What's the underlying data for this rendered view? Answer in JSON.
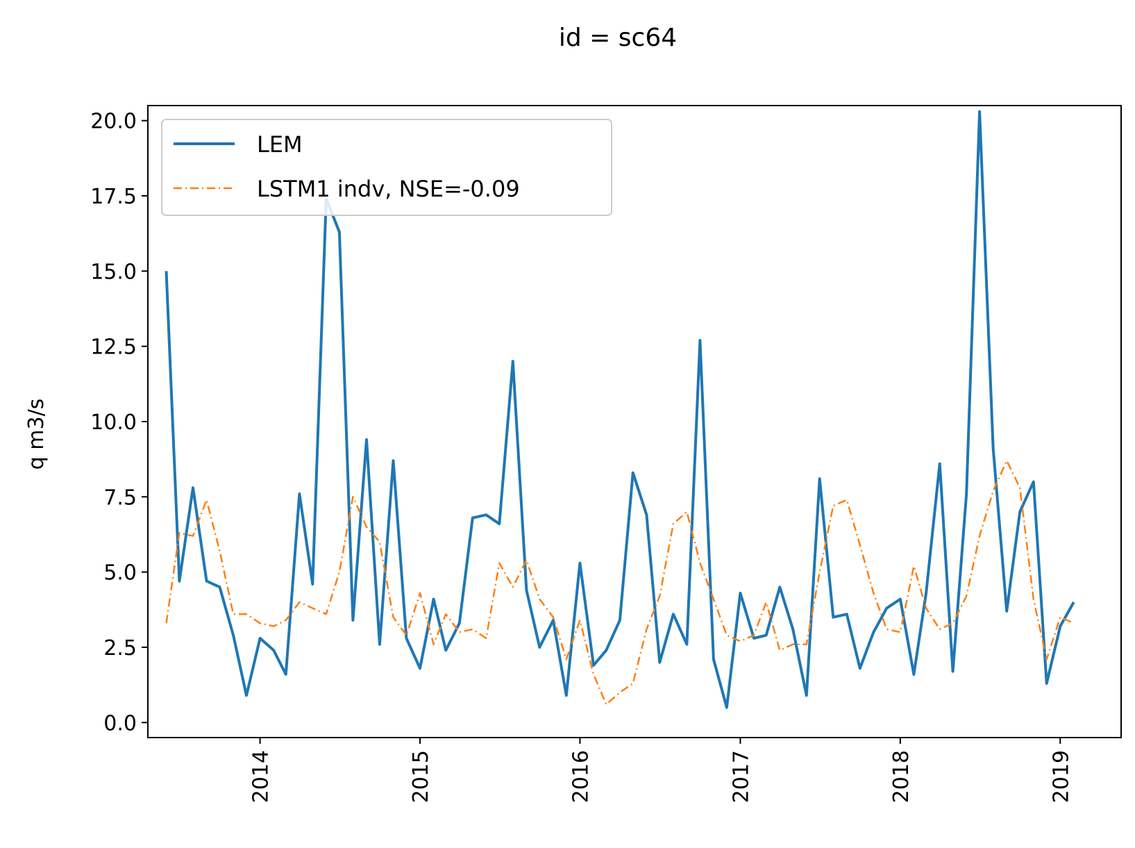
{
  "chart_data": {
    "type": "line",
    "title": "id = sc64",
    "xlabel": "",
    "ylabel": "q m3/s",
    "ylim": [
      -0.5,
      20.5
    ],
    "xlim": [
      "2013-04-20",
      "2019-05-20"
    ],
    "x_ticks": [
      "2014",
      "2015",
      "2016",
      "2017",
      "2018",
      "2019"
    ],
    "y_ticks": [
      "0.0",
      "2.5",
      "5.0",
      "7.5",
      "10.0",
      "12.5",
      "15.0",
      "17.5",
      "20.0"
    ],
    "legend_position": "upper-left",
    "grid": false,
    "x": [
      "2013-06",
      "2013-07",
      "2013-08",
      "2013-09",
      "2013-10",
      "2013-11",
      "2013-12",
      "2014-01",
      "2014-02",
      "2014-03",
      "2014-04",
      "2014-05",
      "2014-06",
      "2014-07",
      "2014-08",
      "2014-09",
      "2014-10",
      "2014-11",
      "2014-12",
      "2015-01",
      "2015-02",
      "2015-03",
      "2015-04",
      "2015-05",
      "2015-06",
      "2015-07",
      "2015-08",
      "2015-09",
      "2015-10",
      "2015-11",
      "2015-12",
      "2016-01",
      "2016-02",
      "2016-03",
      "2016-04",
      "2016-05",
      "2016-06",
      "2016-07",
      "2016-08",
      "2016-09",
      "2016-10",
      "2016-11",
      "2016-12",
      "2017-01",
      "2017-02",
      "2017-03",
      "2017-04",
      "2017-05",
      "2017-06",
      "2017-07",
      "2017-08",
      "2017-09",
      "2017-10",
      "2017-11",
      "2017-12",
      "2018-01",
      "2018-02",
      "2018-03",
      "2018-04",
      "2018-05",
      "2018-06",
      "2018-07",
      "2018-08",
      "2018-09",
      "2018-10",
      "2018-11",
      "2018-12",
      "2019-01",
      "2019-02"
    ],
    "series": [
      {
        "name": "LEM",
        "color": "#1f77b4",
        "style": "solid",
        "values": [
          15.0,
          4.7,
          7.8,
          4.7,
          4.5,
          2.9,
          0.9,
          2.8,
          2.4,
          1.6,
          7.6,
          4.6,
          17.4,
          16.3,
          3.4,
          9.4,
          2.6,
          8.7,
          2.8,
          1.8,
          4.1,
          2.4,
          3.3,
          6.8,
          6.9,
          6.6,
          12.0,
          4.4,
          2.5,
          3.4,
          0.9,
          5.3,
          1.9,
          2.4,
          3.4,
          8.3,
          6.9,
          2.0,
          3.6,
          2.6,
          12.7,
          2.1,
          0.5,
          4.3,
          2.8,
          2.9,
          4.5,
          3.1,
          0.9,
          8.1,
          3.5,
          3.6,
          1.8,
          3.0,
          3.8,
          4.1,
          1.6,
          4.3,
          8.6,
          1.7,
          7.6,
          20.3,
          9.1,
          3.7,
          7.0,
          8.0,
          1.3,
          3.2,
          4.0
        ]
      },
      {
        "name": "LSTM1 indv, NSE=-0.09",
        "color": "#ff7f0e",
        "style": "dashdot",
        "values": [
          3.3,
          6.3,
          6.2,
          7.4,
          5.7,
          3.6,
          3.6,
          3.3,
          3.2,
          3.4,
          4.0,
          3.8,
          3.6,
          5.0,
          7.5,
          6.5,
          6.0,
          3.5,
          2.9,
          4.3,
          2.6,
          3.6,
          3.0,
          3.1,
          2.8,
          5.3,
          4.5,
          5.4,
          4.1,
          3.5,
          2.1,
          3.4,
          1.6,
          0.6,
          1.0,
          1.3,
          3.1,
          4.2,
          6.6,
          7.0,
          5.3,
          4.1,
          2.9,
          2.7,
          2.9,
          4.0,
          2.4,
          2.6,
          2.6,
          5.0,
          7.2,
          7.4,
          5.9,
          4.3,
          3.1,
          3.0,
          5.2,
          3.8,
          3.1,
          3.3,
          4.2,
          6.2,
          7.7,
          8.7,
          7.8,
          4.1,
          2.1,
          3.5,
          3.3
        ]
      }
    ]
  }
}
